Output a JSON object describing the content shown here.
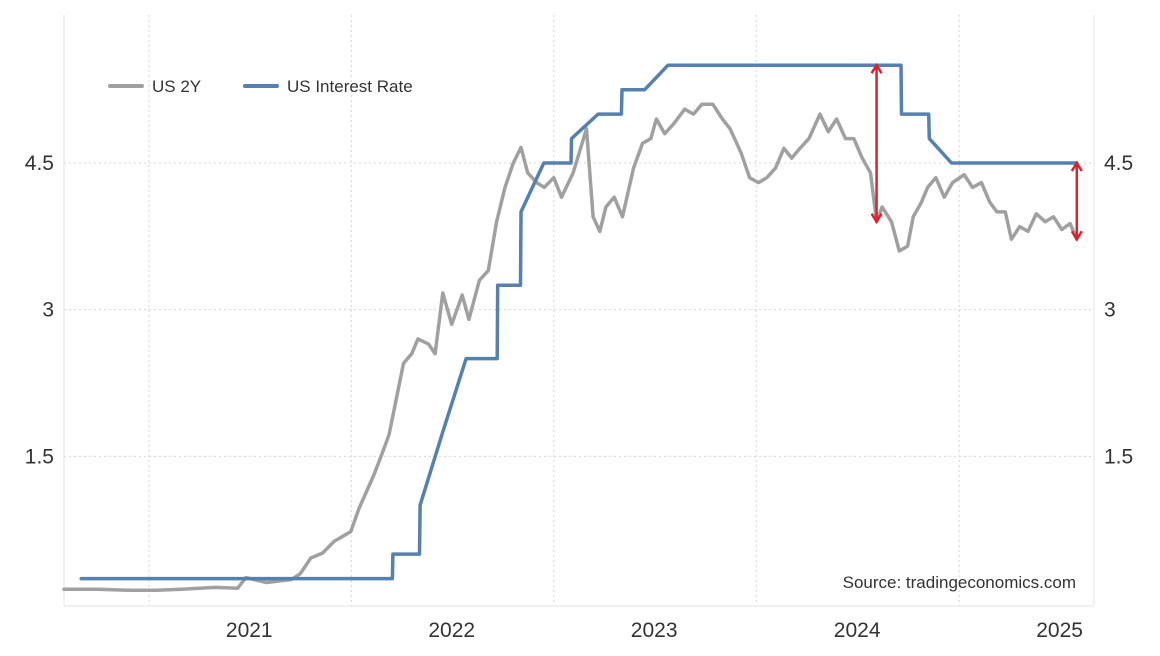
{
  "chart_data": {
    "type": "line",
    "title": "",
    "xlabel": "",
    "ylabel": "",
    "x_ticks": [
      "2021",
      "2022",
      "2023",
      "2024",
      "2025"
    ],
    "y_ticks_left": [
      "1.5",
      "3",
      "4.5"
    ],
    "y_ticks_right": [
      "1.5",
      "3",
      "4.5"
    ],
    "ylim": [
      0,
      6
    ],
    "xlim": [
      "2020-08-01",
      "2025-09-01"
    ],
    "grid": true,
    "legend": "top-left",
    "source": "Source: tradingeconomics.com",
    "series": [
      {
        "name": "US 2Y",
        "color": "#a0a0a0",
        "points": [
          [
            "2020-08-01",
            0.14
          ],
          [
            "2020-10-01",
            0.14
          ],
          [
            "2020-12-01",
            0.13
          ],
          [
            "2021-01-15",
            0.13
          ],
          [
            "2021-03-01",
            0.14
          ],
          [
            "2021-05-01",
            0.16
          ],
          [
            "2021-06-10",
            0.15
          ],
          [
            "2021-06-25",
            0.26
          ],
          [
            "2021-08-01",
            0.21
          ],
          [
            "2021-09-15",
            0.24
          ],
          [
            "2021-10-01",
            0.3
          ],
          [
            "2021-10-20",
            0.46
          ],
          [
            "2021-11-10",
            0.51
          ],
          [
            "2021-12-01",
            0.63
          ],
          [
            "2021-12-31",
            0.73
          ],
          [
            "2022-01-15",
            0.97
          ],
          [
            "2022-02-10",
            1.3
          ],
          [
            "2022-02-25",
            1.52
          ],
          [
            "2022-03-10",
            1.72
          ],
          [
            "2022-03-20",
            2.0
          ],
          [
            "2022-04-05",
            2.45
          ],
          [
            "2022-04-20",
            2.55
          ],
          [
            "2022-05-01",
            2.7
          ],
          [
            "2022-05-20",
            2.65
          ],
          [
            "2022-06-01",
            2.55
          ],
          [
            "2022-06-15",
            3.17
          ],
          [
            "2022-07-01",
            2.85
          ],
          [
            "2022-07-20",
            3.15
          ],
          [
            "2022-08-01",
            2.9
          ],
          [
            "2022-08-20",
            3.3
          ],
          [
            "2022-09-05",
            3.4
          ],
          [
            "2022-09-20",
            3.9
          ],
          [
            "2022-10-05",
            4.25
          ],
          [
            "2022-10-20",
            4.5
          ],
          [
            "2022-11-03",
            4.66
          ],
          [
            "2022-11-15",
            4.4
          ],
          [
            "2022-12-01",
            4.3
          ],
          [
            "2022-12-15",
            4.25
          ],
          [
            "2023-01-01",
            4.35
          ],
          [
            "2023-01-15",
            4.15
          ],
          [
            "2023-02-05",
            4.4
          ],
          [
            "2023-03-01",
            4.85
          ],
          [
            "2023-03-13",
            3.95
          ],
          [
            "2023-03-25",
            3.8
          ],
          [
            "2023-04-05",
            4.05
          ],
          [
            "2023-04-20",
            4.15
          ],
          [
            "2023-05-05",
            3.95
          ],
          [
            "2023-05-25",
            4.45
          ],
          [
            "2023-06-10",
            4.7
          ],
          [
            "2023-06-25",
            4.75
          ],
          [
            "2023-07-05",
            4.95
          ],
          [
            "2023-07-20",
            4.8
          ],
          [
            "2023-08-05",
            4.9
          ],
          [
            "2023-08-25",
            5.05
          ],
          [
            "2023-09-10",
            5.0
          ],
          [
            "2023-09-25",
            5.1
          ],
          [
            "2023-10-15",
            5.1
          ],
          [
            "2023-11-01",
            4.95
          ],
          [
            "2023-11-15",
            4.85
          ],
          [
            "2023-12-05",
            4.6
          ],
          [
            "2023-12-20",
            4.35
          ],
          [
            "2024-01-05",
            4.3
          ],
          [
            "2024-01-20",
            4.35
          ],
          [
            "2024-02-05",
            4.45
          ],
          [
            "2024-02-20",
            4.65
          ],
          [
            "2024-03-05",
            4.55
          ],
          [
            "2024-03-20",
            4.65
          ],
          [
            "2024-04-05",
            4.75
          ],
          [
            "2024-04-25",
            5.0
          ],
          [
            "2024-05-10",
            4.82
          ],
          [
            "2024-05-25",
            4.95
          ],
          [
            "2024-06-10",
            4.75
          ],
          [
            "2024-06-25",
            4.75
          ],
          [
            "2024-07-10",
            4.55
          ],
          [
            "2024-07-25",
            4.4
          ],
          [
            "2024-08-05",
            3.9
          ],
          [
            "2024-08-15",
            4.05
          ],
          [
            "2024-09-01",
            3.9
          ],
          [
            "2024-09-15",
            3.6
          ],
          [
            "2024-09-30",
            3.65
          ],
          [
            "2024-10-10",
            3.95
          ],
          [
            "2024-10-25",
            4.1
          ],
          [
            "2024-11-05",
            4.25
          ],
          [
            "2024-11-20",
            4.35
          ],
          [
            "2024-12-05",
            4.15
          ],
          [
            "2024-12-20",
            4.3
          ],
          [
            "2025-01-10",
            4.38
          ],
          [
            "2025-01-25",
            4.25
          ],
          [
            "2025-02-10",
            4.3
          ],
          [
            "2025-02-25",
            4.1
          ],
          [
            "2025-03-10",
            4.0
          ],
          [
            "2025-03-25",
            4.0
          ],
          [
            "2025-04-05",
            3.72
          ],
          [
            "2025-04-20",
            3.85
          ],
          [
            "2025-05-05",
            3.8
          ],
          [
            "2025-05-20",
            3.98
          ],
          [
            "2025-06-05",
            3.9
          ],
          [
            "2025-06-20",
            3.95
          ],
          [
            "2025-07-05",
            3.82
          ],
          [
            "2025-07-20",
            3.88
          ],
          [
            "2025-08-01",
            3.72
          ]
        ]
      },
      {
        "name": "US Interest Rate",
        "color": "#5580b0",
        "points": [
          [
            "2020-09-01",
            0.25
          ],
          [
            "2022-03-16",
            0.25
          ],
          [
            "2022-03-17",
            0.5
          ],
          [
            "2022-05-04",
            0.5
          ],
          [
            "2022-05-05",
            1.0
          ],
          [
            "2022-06-15",
            1.75
          ],
          [
            "2022-07-27",
            2.5
          ],
          [
            "2022-09-21",
            2.5
          ],
          [
            "2022-09-22",
            3.25
          ],
          [
            "2022-11-02",
            3.25
          ],
          [
            "2022-11-03",
            4.0
          ],
          [
            "2022-12-14",
            4.5
          ],
          [
            "2023-02-01",
            4.5
          ],
          [
            "2023-02-02",
            4.75
          ],
          [
            "2023-03-22",
            5.0
          ],
          [
            "2023-05-03",
            5.0
          ],
          [
            "2023-05-04",
            5.25
          ],
          [
            "2023-06-14",
            5.25
          ],
          [
            "2023-07-26",
            5.5
          ],
          [
            "2024-09-18",
            5.5
          ],
          [
            "2024-09-19",
            5.0
          ],
          [
            "2024-11-07",
            5.0
          ],
          [
            "2024-11-08",
            4.75
          ],
          [
            "2024-12-18",
            4.5
          ],
          [
            "2025-08-01",
            4.5
          ]
        ]
      }
    ],
    "annotations": [
      {
        "type": "double-arrow",
        "x": "2024-08-05",
        "y_from": 3.9,
        "y_to": 5.5,
        "color": "#d9232d"
      },
      {
        "type": "double-arrow",
        "x": "2025-08-01",
        "y_from": 3.72,
        "y_to": 4.5,
        "color": "#d9232d"
      }
    ]
  }
}
